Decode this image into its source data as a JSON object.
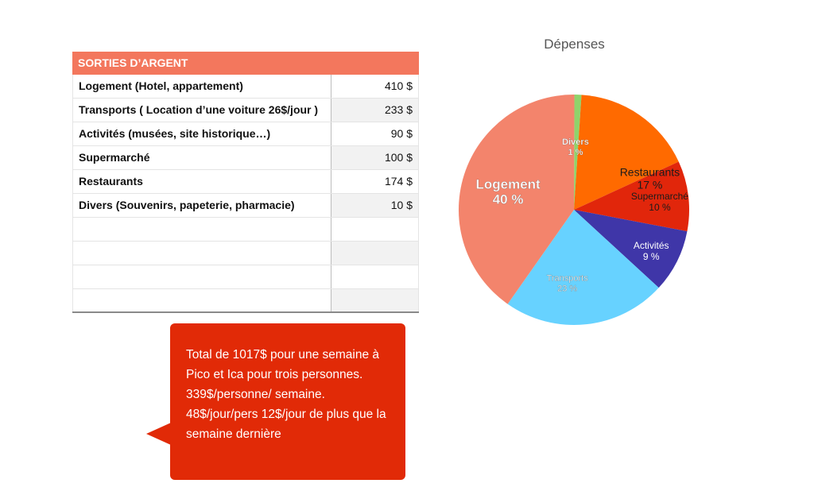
{
  "table": {
    "header": "SORTIES D’ARGENT",
    "rows": [
      {
        "label": "Logement (Hotel, appartement)",
        "value": "410 $"
      },
      {
        "label": "Transports ( Location d’une voiture 26$/jour )",
        "value": "233 $"
      },
      {
        "label": "Activités (musées, site historique…)",
        "value": "90 $"
      },
      {
        "label": "Supermarché",
        "value": "100 $"
      },
      {
        "label": "Restaurants",
        "value": "174 $"
      },
      {
        "label": "Divers (Souvenirs, papeterie, pharmacie)",
        "value": "10 $"
      },
      {
        "label": "",
        "value": ""
      },
      {
        "label": "",
        "value": ""
      },
      {
        "label": "",
        "value": ""
      },
      {
        "label": "",
        "value": ""
      }
    ]
  },
  "callout": {
    "text": "Total de 1017$ pour une semaine à Pico et Ica pour trois personnes. 339$/personne/ semaine.   48$/jour/pers 12$/jour de plus que la semaine dernière"
  },
  "chart_data": {
    "type": "pie",
    "title": "Dépenses",
    "series": [
      {
        "name": "Divers",
        "label": "1 %",
        "value": 10,
        "color": "#8fd36b"
      },
      {
        "name": "Restaurants",
        "label": "17 %",
        "value": 174,
        "color": "#ff6a00"
      },
      {
        "name": "Supermarché",
        "label": "10 %",
        "value": 100,
        "color": "#e1260b"
      },
      {
        "name": "Activités",
        "label": "9 %",
        "value": 90,
        "color": "#3f36a8"
      },
      {
        "name": "Transports",
        "label": "23 %",
        "value": 233,
        "color": "#67d2ff"
      },
      {
        "name": "Logement",
        "label": "40 %",
        "value": 410,
        "color": "#f3846c"
      }
    ]
  }
}
